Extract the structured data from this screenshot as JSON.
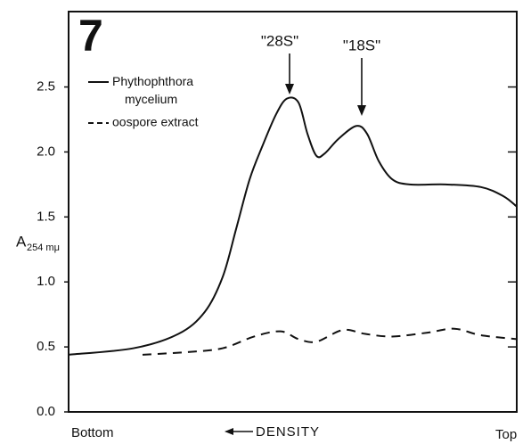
{
  "chart_data": {
    "type": "line",
    "panel_label": "7",
    "ylabel": "A",
    "ylabel_sub": "254 mμ",
    "xlabel": "DENSITY",
    "x_start_label": "Bottom",
    "x_end_label": "Top",
    "annotations": [
      "\"28S\"",
      "\"18S\""
    ],
    "xlim": [
      0,
      100
    ],
    "ylim": [
      0,
      3.08
    ],
    "yticks": [
      {
        "value": 0,
        "label": "0.0"
      },
      0.5,
      {
        "value": 1,
        "label": "1.0"
      },
      1.5,
      {
        "value": 2,
        "label": "2.0"
      },
      2.5
    ],
    "series": [
      {
        "name": "Phythophthora mycelium",
        "color": "#111111",
        "dash": "solid",
        "x": [
          0,
          14.5,
          24.5,
          30.4,
          34.4,
          37.4,
          40.4,
          43.3,
          46.3,
          48.7,
          51.3,
          53.3,
          55.3,
          57.2,
          60.2,
          64.2,
          66.6,
          69.2,
          72.2,
          76.1,
          84.1,
          92,
          97,
          100
        ],
        "values": [
          0.44,
          0.49,
          0.6,
          0.77,
          1.04,
          1.41,
          1.79,
          2.05,
          2.29,
          2.41,
          2.38,
          2.14,
          1.97,
          1.99,
          2.1,
          2.2,
          2.14,
          1.93,
          1.79,
          1.75,
          1.75,
          1.73,
          1.66,
          1.58
        ]
      },
      {
        "name": "oospore extract",
        "color": "#111111",
        "dash": "dashed",
        "x": [
          16.5,
          26.4,
          34.4,
          41.4,
          47.3,
          51.3,
          55.3,
          61.2,
          66.2,
          72.2,
          80.1,
          86.1,
          92,
          100
        ],
        "values": [
          0.44,
          0.46,
          0.49,
          0.58,
          0.62,
          0.56,
          0.54,
          0.63,
          0.6,
          0.58,
          0.61,
          0.64,
          0.59,
          0.56
        ]
      }
    ]
  }
}
